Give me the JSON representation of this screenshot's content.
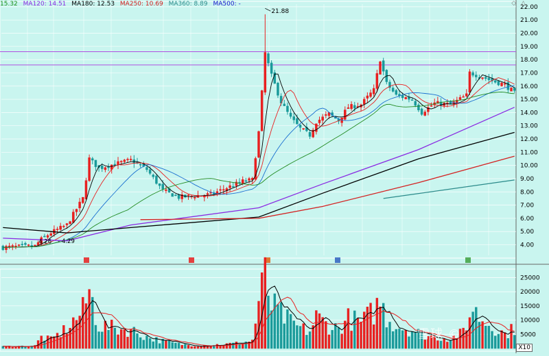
{
  "legend": [
    {
      "label": "15.32",
      "color": "#1a8f1a"
    },
    {
      "label": "MA120: 14.51",
      "color": "#8a2be2"
    },
    {
      "label": "MA180: 12.53",
      "color": "#000000"
    },
    {
      "label": "MA250: 10.69",
      "color": "#d42020"
    },
    {
      "label": "MA360: 8.89",
      "color": "#2a8a8a"
    },
    {
      "label": "MA500: -",
      "color": "#1515cc"
    }
  ],
  "corner_icons": [
    "◇",
    "△"
  ],
  "watermark": "雪球 ©",
  "volume_scale_label": "X10",
  "colors": {
    "up": "#e82020",
    "down": "#1a9a9a",
    "background": "#c9f5ef"
  },
  "chart_data": [
    {
      "type": "candlestick",
      "name": "price",
      "ylim": [
        3.2,
        22.2
      ],
      "yticks": [
        4,
        5,
        6,
        7,
        8,
        9,
        10,
        11,
        12,
        13,
        14,
        15,
        16,
        17,
        18,
        19,
        20,
        21,
        22
      ],
      "ytick_labels": [
        "4.00",
        "5.00",
        "6.00",
        "7.00",
        "8.00",
        "9.00",
        "10.00",
        "11.00",
        "12.00",
        "13.00",
        "14.00",
        "15.00",
        "16.00",
        "17.00",
        "18.00",
        "19.00",
        "20.00",
        "21.00",
        "22.00"
      ],
      "horizontal_lines": [
        {
          "value": 18.6,
          "color": "#b04fe0"
        },
        {
          "value": 17.6,
          "color": "#b04fe0"
        }
      ],
      "annotations": [
        {
          "text": "21.88",
          "value": 21.88,
          "index": 82
        },
        {
          "text": "4.26",
          "value": 4.26,
          "index": 12
        },
        {
          "text": "4.29",
          "value": 4.29,
          "index": 18
        }
      ],
      "anchors": [
        [
          0,
          3.8
        ],
        [
          10,
          3.9
        ],
        [
          12,
          4.4
        ],
        [
          15,
          4.9
        ],
        [
          20,
          5.5
        ],
        [
          25,
          7.5
        ],
        [
          27,
          10.5
        ],
        [
          30,
          9.8
        ],
        [
          35,
          10.1
        ],
        [
          40,
          10.4
        ],
        [
          45,
          9.7
        ],
        [
          50,
          8.1
        ],
        [
          55,
          7.6
        ],
        [
          60,
          7.7
        ],
        [
          65,
          7.8
        ],
        [
          70,
          8.3
        ],
        [
          75,
          8.8
        ],
        [
          78,
          8.9
        ],
        [
          80,
          12.5
        ],
        [
          82,
          18.5
        ],
        [
          84,
          16.8
        ],
        [
          87,
          14.8
        ],
        [
          90,
          13.6
        ],
        [
          93,
          12.8
        ],
        [
          96,
          12.3
        ],
        [
          98,
          13.3
        ],
        [
          102,
          13.9
        ],
        [
          105,
          13.4
        ],
        [
          108,
          14.4
        ],
        [
          112,
          14.6
        ],
        [
          116,
          15.7
        ],
        [
          118,
          18.0
        ],
        [
          120,
          16.2
        ],
        [
          123,
          15.3
        ],
        [
          128,
          15.0
        ],
        [
          131,
          14.0
        ],
        [
          135,
          14.7
        ],
        [
          140,
          14.6
        ],
        [
          145,
          15.3
        ],
        [
          146,
          17.0
        ],
        [
          150,
          16.7
        ],
        [
          153,
          16.4
        ],
        [
          157,
          16.1
        ],
        [
          160,
          15.5
        ]
      ]
    },
    {
      "type": "line",
      "name": "moving-averages",
      "series": [
        {
          "label": "MA120",
          "color": "#8a2be2",
          "points": [
            [
              0,
              4.5
            ],
            [
              20,
              4.3
            ],
            [
              40,
              5.5
            ],
            [
              80,
              6.8
            ],
            [
              100,
              8.6
            ],
            [
              130,
              11.2
            ],
            [
              160,
              14.4
            ]
          ]
        },
        {
          "label": "MA180",
          "color": "#000000",
          "points": [
            [
              0,
              5.3
            ],
            [
              20,
              4.9
            ],
            [
              40,
              5.3
            ],
            [
              80,
              6.1
            ],
            [
              100,
              7.9
            ],
            [
              130,
              10.5
            ],
            [
              160,
              12.5
            ]
          ]
        },
        {
          "label": "MA250",
          "color": "#d42020",
          "points": [
            [
              43,
              5.9
            ],
            [
              80,
              6.0
            ],
            [
              100,
              6.9
            ],
            [
              130,
              8.7
            ],
            [
              160,
              10.7
            ]
          ]
        },
        {
          "label": "MA360",
          "color": "#2a8a8a",
          "points": [
            [
              119,
              7.5
            ],
            [
              160,
              8.9
            ]
          ]
        },
        {
          "label": "MA500",
          "color": "#1515cc",
          "points": []
        }
      ]
    },
    {
      "type": "bar",
      "name": "volume",
      "ylim": [
        0,
        27500
      ],
      "yticks": [
        5000,
        10000,
        15000,
        20000,
        25000
      ],
      "ytick_labels": [
        "5000",
        "10000",
        "15000",
        "20000",
        "25000"
      ],
      "anchors": [
        [
          0,
          600
        ],
        [
          10,
          900
        ],
        [
          12,
          4000
        ],
        [
          15,
          3000
        ],
        [
          20,
          7000
        ],
        [
          25,
          13000
        ],
        [
          27,
          20000
        ],
        [
          30,
          8000
        ],
        [
          35,
          7000
        ],
        [
          40,
          6500
        ],
        [
          45,
          4000
        ],
        [
          50,
          2500
        ],
        [
          55,
          1500
        ],
        [
          60,
          1000
        ],
        [
          65,
          1200
        ],
        [
          70,
          1500
        ],
        [
          75,
          2000
        ],
        [
          78,
          2800
        ],
        [
          80,
          16000
        ],
        [
          82,
          25000
        ],
        [
          84,
          15000
        ],
        [
          87,
          12000
        ],
        [
          90,
          9000
        ],
        [
          93,
          7000
        ],
        [
          96,
          6000
        ],
        [
          98,
          11000
        ],
        [
          102,
          8000
        ],
        [
          105,
          7000
        ],
        [
          108,
          10500
        ],
        [
          112,
          9000
        ],
        [
          116,
          13000
        ],
        [
          118,
          16500
        ],
        [
          120,
          11000
        ],
        [
          123,
          8000
        ],
        [
          128,
          6500
        ],
        [
          131,
          5000
        ],
        [
          135,
          4000
        ],
        [
          140,
          3500
        ],
        [
          145,
          6000
        ],
        [
          146,
          15000
        ],
        [
          150,
          10000
        ],
        [
          153,
          8000
        ],
        [
          157,
          5000
        ],
        [
          160,
          7000
        ]
      ]
    }
  ]
}
